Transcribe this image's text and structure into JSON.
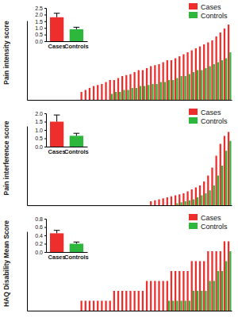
{
  "chart_data": [
    {
      "type": "bar",
      "y_label": "Pain intensity score",
      "categories": [
        null,
        null,
        null,
        null,
        null,
        null,
        null,
        null,
        null,
        null,
        null,
        null,
        null,
        null,
        null,
        null,
        null,
        null,
        null,
        null,
        null,
        null,
        null,
        null,
        null,
        null,
        null,
        null,
        null,
        null,
        null,
        null,
        null,
        null,
        null,
        null,
        null,
        null,
        null,
        null,
        null,
        null,
        null,
        null,
        null,
        null,
        null,
        null,
        null,
        null
      ],
      "series": [
        {
          "name": "Cases",
          "color": "#ee2d2d",
          "values": [
            0,
            0,
            0,
            0,
            0,
            0,
            0,
            0,
            0,
            0,
            0,
            0,
            0,
            0.8,
            1.0,
            1.2,
            1.4,
            1.5,
            1.6,
            1.8,
            2.0,
            2.0,
            2.2,
            2.4,
            2.5,
            2.6,
            2.8,
            3.0,
            3.0,
            3.2,
            3.4,
            3.5,
            3.6,
            3.8,
            4.0,
            4.0,
            4.2,
            4.4,
            4.6,
            4.8,
            5.0,
            5.2,
            5.4,
            5.6,
            5.8,
            6.0,
            6.4,
            6.8,
            7.2,
            7.6
          ]
        },
        {
          "name": "Controls",
          "color": "#2db83d",
          "values": [
            0,
            0,
            0,
            0,
            0,
            0,
            0,
            0,
            0,
            0,
            0,
            0,
            0,
            0,
            0,
            0,
            0,
            0,
            0,
            0,
            0.6,
            0.8,
            0.8,
            1.0,
            1.0,
            1.2,
            1.2,
            1.4,
            1.4,
            1.5,
            1.6,
            1.6,
            1.8,
            1.8,
            2.0,
            2.0,
            2.2,
            2.4,
            2.4,
            2.6,
            2.8,
            3.0,
            3.0,
            3.2,
            3.4,
            3.6,
            3.8,
            4.0,
            4.2,
            4.8
          ]
        }
      ],
      "ylim": [
        0,
        8
      ],
      "tick_labels": false,
      "legend": "top-right"
    },
    {
      "type": "bar",
      "categories": [
        "Cases",
        "Controls"
      ],
      "values": [
        1.8,
        0.9
      ],
      "errors": [
        0.3,
        0.15
      ],
      "colors": [
        "#ee2d2d",
        "#2db83d"
      ],
      "ylim": [
        0,
        2.5
      ],
      "yticks": [
        {
          "value": 0,
          "label": "0.0"
        },
        0.5,
        {
          "value": 1,
          "label": "1.0"
        },
        1.5,
        {
          "value": 2,
          "label": "2.0"
        },
        2.5
      ]
    },
    {
      "type": "bar",
      "y_label": "Pain interference score",
      "categories": [
        null,
        null,
        null,
        null,
        null,
        null,
        null,
        null,
        null,
        null,
        null,
        null,
        null,
        null,
        null,
        null,
        null,
        null,
        null,
        null,
        null,
        null,
        null,
        null,
        null,
        null,
        null,
        null,
        null,
        null,
        null,
        null,
        null,
        null,
        null,
        null,
        null,
        null,
        null,
        null,
        null,
        null,
        null,
        null,
        null,
        null,
        null,
        null,
        null,
        null
      ],
      "series": [
        {
          "name": "Cases",
          "color": "#ee2d2d",
          "values": [
            0,
            0,
            0,
            0,
            0,
            0,
            0,
            0,
            0,
            0,
            0,
            0,
            0,
            0,
            0,
            0,
            0,
            0,
            0,
            0,
            0,
            0,
            0,
            0,
            0,
            0,
            0,
            0,
            0,
            0,
            0.4,
            0.5,
            0.6,
            0.7,
            0.8,
            0.9,
            1.0,
            1.1,
            1.2,
            1.4,
            1.6,
            1.8,
            2.0,
            2.4,
            3.0,
            3.8,
            5.0,
            6.2,
            7.0,
            7.4
          ]
        },
        {
          "name": "Controls",
          "color": "#2db83d",
          "values": [
            0,
            0,
            0,
            0,
            0,
            0,
            0,
            0,
            0,
            0,
            0,
            0,
            0,
            0,
            0,
            0,
            0,
            0,
            0,
            0,
            0,
            0,
            0,
            0,
            0,
            0,
            0,
            0,
            0,
            0,
            0,
            0,
            0,
            0,
            0,
            0,
            0.2,
            0.3,
            0.4,
            0.5,
            0.6,
            0.8,
            1.0,
            1.2,
            1.5,
            2.0,
            3.0,
            4.0,
            5.5,
            6.5
          ]
        }
      ],
      "ylim": [
        0,
        8
      ],
      "tick_labels": false,
      "legend": "top-right"
    },
    {
      "type": "bar",
      "categories": [
        "Cases",
        "Controls"
      ],
      "values": [
        1.5,
        0.65
      ],
      "errors": [
        0.4,
        0.15
      ],
      "colors": [
        "#ee2d2d",
        "#2db83d"
      ],
      "ylim": [
        0,
        2
      ],
      "yticks": [
        {
          "value": 0,
          "label": "0.0"
        },
        0.5,
        {
          "value": 1,
          "label": "1.0"
        },
        1.5,
        {
          "value": 2,
          "label": "2.0"
        }
      ]
    },
    {
      "type": "bar",
      "y_label": "HAQ Disability Mean Score",
      "categories": [
        null,
        null,
        null,
        null,
        null,
        null,
        null,
        null,
        null,
        null,
        null,
        null,
        null,
        null,
        null,
        null,
        null,
        null,
        null,
        null,
        null,
        null,
        null,
        null,
        null,
        null,
        null,
        null,
        null,
        null,
        null,
        null,
        null,
        null,
        null,
        null,
        null,
        null,
        null,
        null,
        null,
        null,
        null,
        null,
        null,
        null,
        null,
        null,
        null,
        null
      ],
      "series": [
        {
          "name": "Cases",
          "color": "#ee2d2d",
          "values": [
            0,
            0,
            0,
            0,
            0,
            0,
            0,
            0,
            0,
            0,
            0,
            0,
            0,
            0.125,
            0.125,
            0.125,
            0.125,
            0.125,
            0.125,
            0.125,
            0.125,
            0.25,
            0.25,
            0.25,
            0.25,
            0.25,
            0.25,
            0.25,
            0.25,
            0.375,
            0.375,
            0.375,
            0.375,
            0.375,
            0.375,
            0.5,
            0.5,
            0.5,
            0.5,
            0.5,
            0.625,
            0.625,
            0.625,
            0.625,
            0.75,
            0.75,
            0.75,
            0.75,
            0.875,
            0.875
          ]
        },
        {
          "name": "Controls",
          "color": "#2db83d",
          "values": [
            0,
            0,
            0,
            0,
            0,
            0,
            0,
            0,
            0,
            0,
            0,
            0,
            0,
            0,
            0,
            0,
            0,
            0,
            0,
            0,
            0,
            0,
            0,
            0,
            0,
            0,
            0,
            0,
            0,
            0,
            0,
            0,
            0,
            0,
            0.125,
            0.125,
            0.125,
            0.125,
            0.125,
            0.125,
            0.25,
            0.25,
            0.25,
            0.25,
            0.375,
            0.375,
            0.5,
            0.5,
            0.625,
            0.75
          ]
        }
      ],
      "ylim": [
        0,
        1
      ],
      "tick_labels": false,
      "legend": "top-right"
    },
    {
      "type": "bar",
      "categories": [
        "Cases",
        "Controls"
      ],
      "values": [
        0.45,
        0.2
      ],
      "errors": [
        0.07,
        0.04
      ],
      "colors": [
        "#ee2d2d",
        "#2db83d"
      ],
      "ylim": [
        0,
        0.8
      ],
      "yticks": [
        {
          "value": 0,
          "label": "0.0"
        },
        0.2,
        0.4,
        0.6,
        0.8
      ]
    }
  ]
}
